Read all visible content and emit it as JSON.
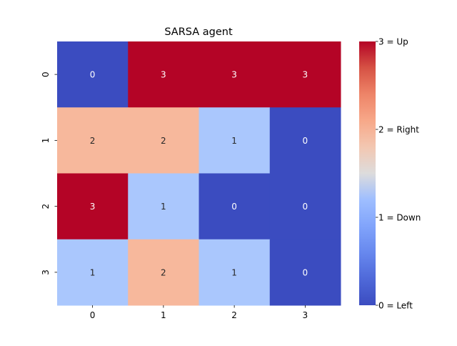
{
  "chart_data": {
    "type": "heatmap",
    "title": "SARSA agent",
    "xlabel": "",
    "ylabel": "",
    "x_categories": [
      "0",
      "1",
      "2",
      "3"
    ],
    "y_categories": [
      "0",
      "1",
      "2",
      "3"
    ],
    "values": [
      [
        0,
        3,
        3,
        3
      ],
      [
        2,
        2,
        1,
        0
      ],
      [
        3,
        1,
        0,
        0
      ],
      [
        1,
        2,
        1,
        0
      ]
    ],
    "value_colors": {
      "0": "#3b4cc0",
      "1": "#aac7fd",
      "2": "#f7b89c",
      "3": "#b40426"
    },
    "colorscale": "coolwarm",
    "colorbar": {
      "range": [
        0,
        3
      ],
      "ticks": [
        {
          "value": 0,
          "label": "0 = Left"
        },
        {
          "value": 1,
          "label": "1 = Down"
        },
        {
          "value": 2,
          "label": "2 = Right"
        },
        {
          "value": 3,
          "label": "3 = Up"
        }
      ]
    },
    "annotations": true,
    "grid": false
  }
}
